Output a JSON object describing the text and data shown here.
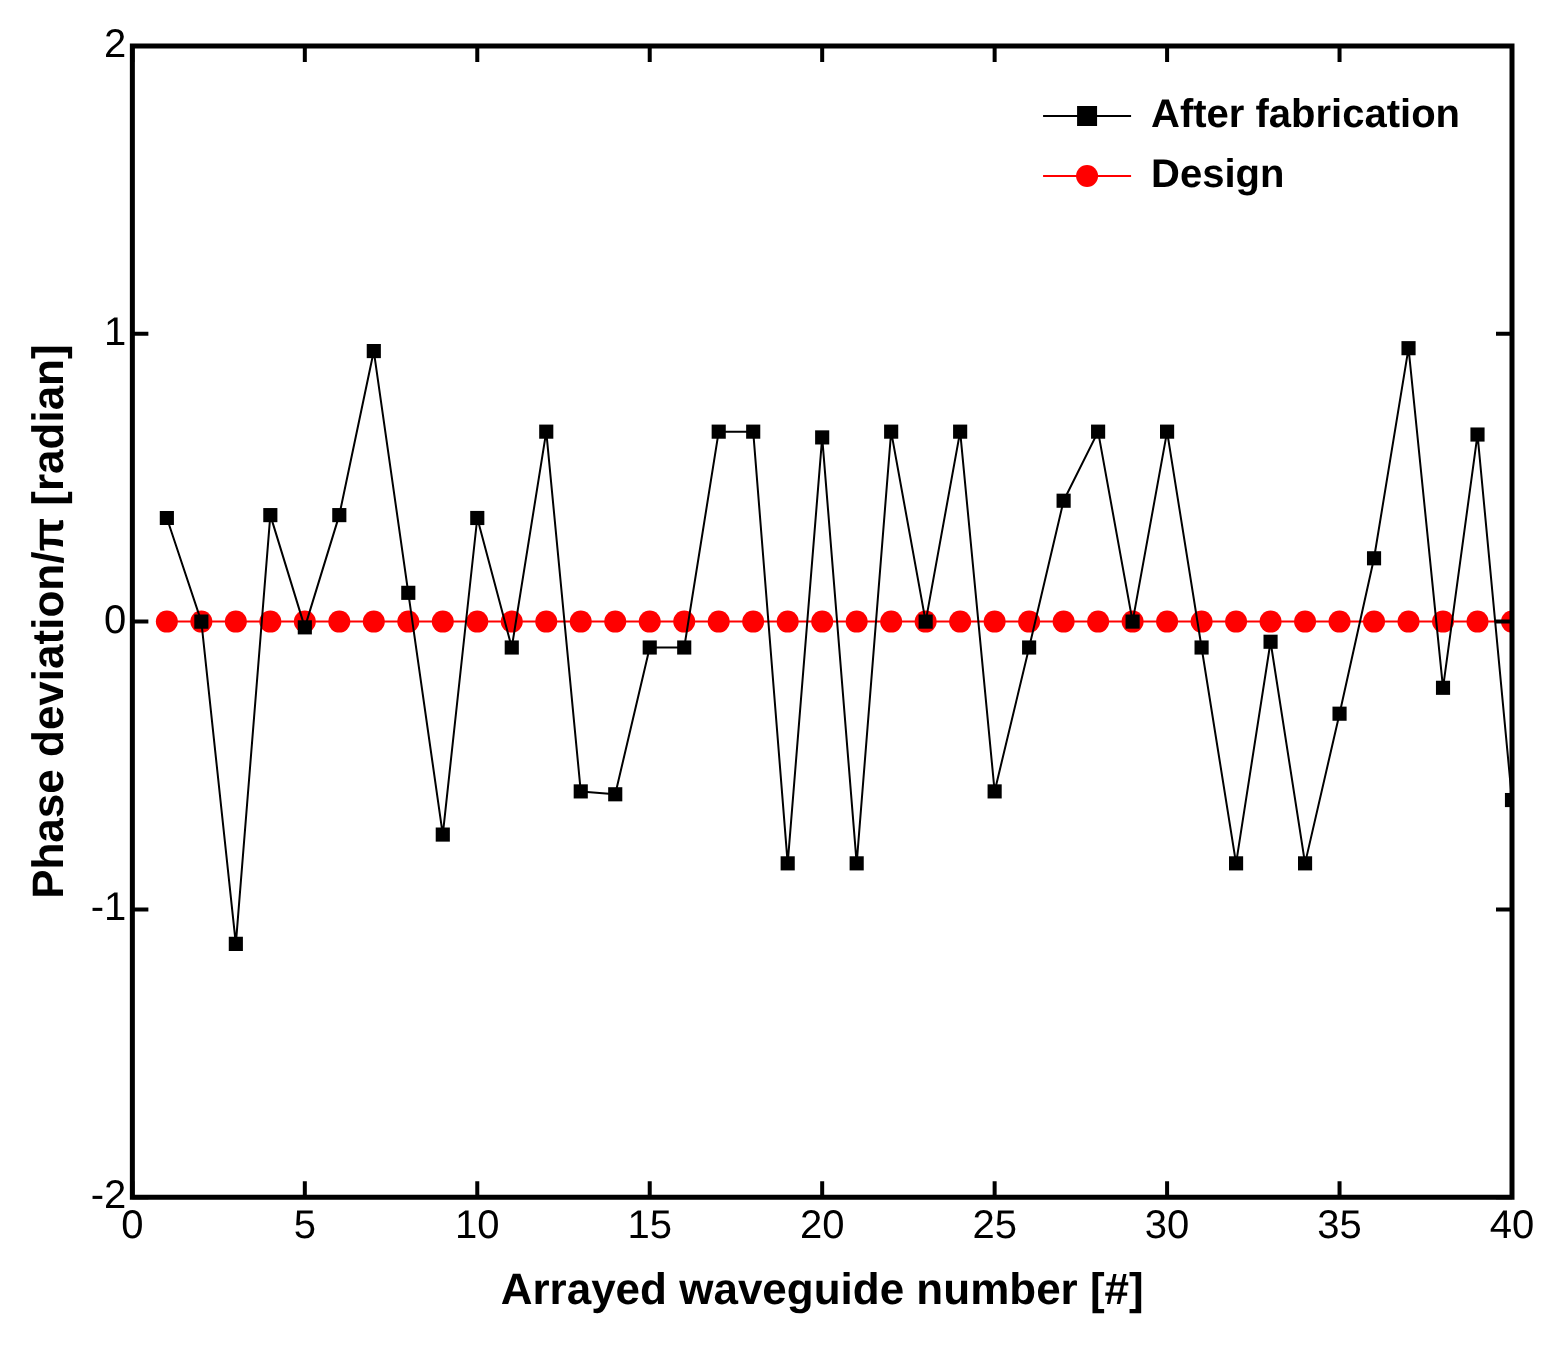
{
  "chart_data": {
    "type": "line",
    "xlabel": "Arrayed waveguide number [#]",
    "ylabel": "Phase deviation/π [radian]",
    "x": [
      1,
      2,
      3,
      4,
      5,
      6,
      7,
      8,
      9,
      10,
      11,
      12,
      13,
      14,
      15,
      16,
      17,
      18,
      19,
      20,
      21,
      22,
      23,
      24,
      25,
      26,
      27,
      28,
      29,
      30,
      31,
      32,
      33,
      34,
      35,
      36,
      37,
      38,
      39,
      40
    ],
    "series": [
      {
        "name": "After fabrication",
        "color": "#000000",
        "marker": "square",
        "values": [
          0.36,
          0,
          -1.12,
          0.37,
          -0.02,
          0.37,
          0.94,
          0.1,
          -0.74,
          0.36,
          -0.09,
          0.66,
          -0.59,
          -0.6,
          -0.09,
          -0.09,
          0.66,
          0.66,
          -0.84,
          0.64,
          -0.84,
          0.66,
          0,
          0.66,
          -0.59,
          -0.09,
          0.42,
          0.66,
          0,
          0.66,
          -0.09,
          -0.84,
          -0.07,
          -0.84,
          -0.32,
          0.22,
          0.95,
          -0.23,
          0.65,
          -0.62
        ]
      },
      {
        "name": "Design",
        "color": "#ff0000",
        "marker": "circle",
        "values": [
          0,
          0,
          0,
          0,
          0,
          0,
          0,
          0,
          0,
          0,
          0,
          0,
          0,
          0,
          0,
          0,
          0,
          0,
          0,
          0,
          0,
          0,
          0,
          0,
          0,
          0,
          0,
          0,
          0,
          0,
          0,
          0,
          0,
          0,
          0,
          0,
          0,
          0,
          0,
          0
        ]
      }
    ],
    "xlim": [
      0,
      40
    ],
    "xticks": [
      0,
      5,
      10,
      15,
      20,
      25,
      30,
      35,
      40
    ],
    "ylim": [
      -2,
      2
    ],
    "yticks": [
      -2,
      -1,
      0,
      1,
      2
    ],
    "grid": false,
    "legend": "top right",
    "line_style": "solid"
  }
}
